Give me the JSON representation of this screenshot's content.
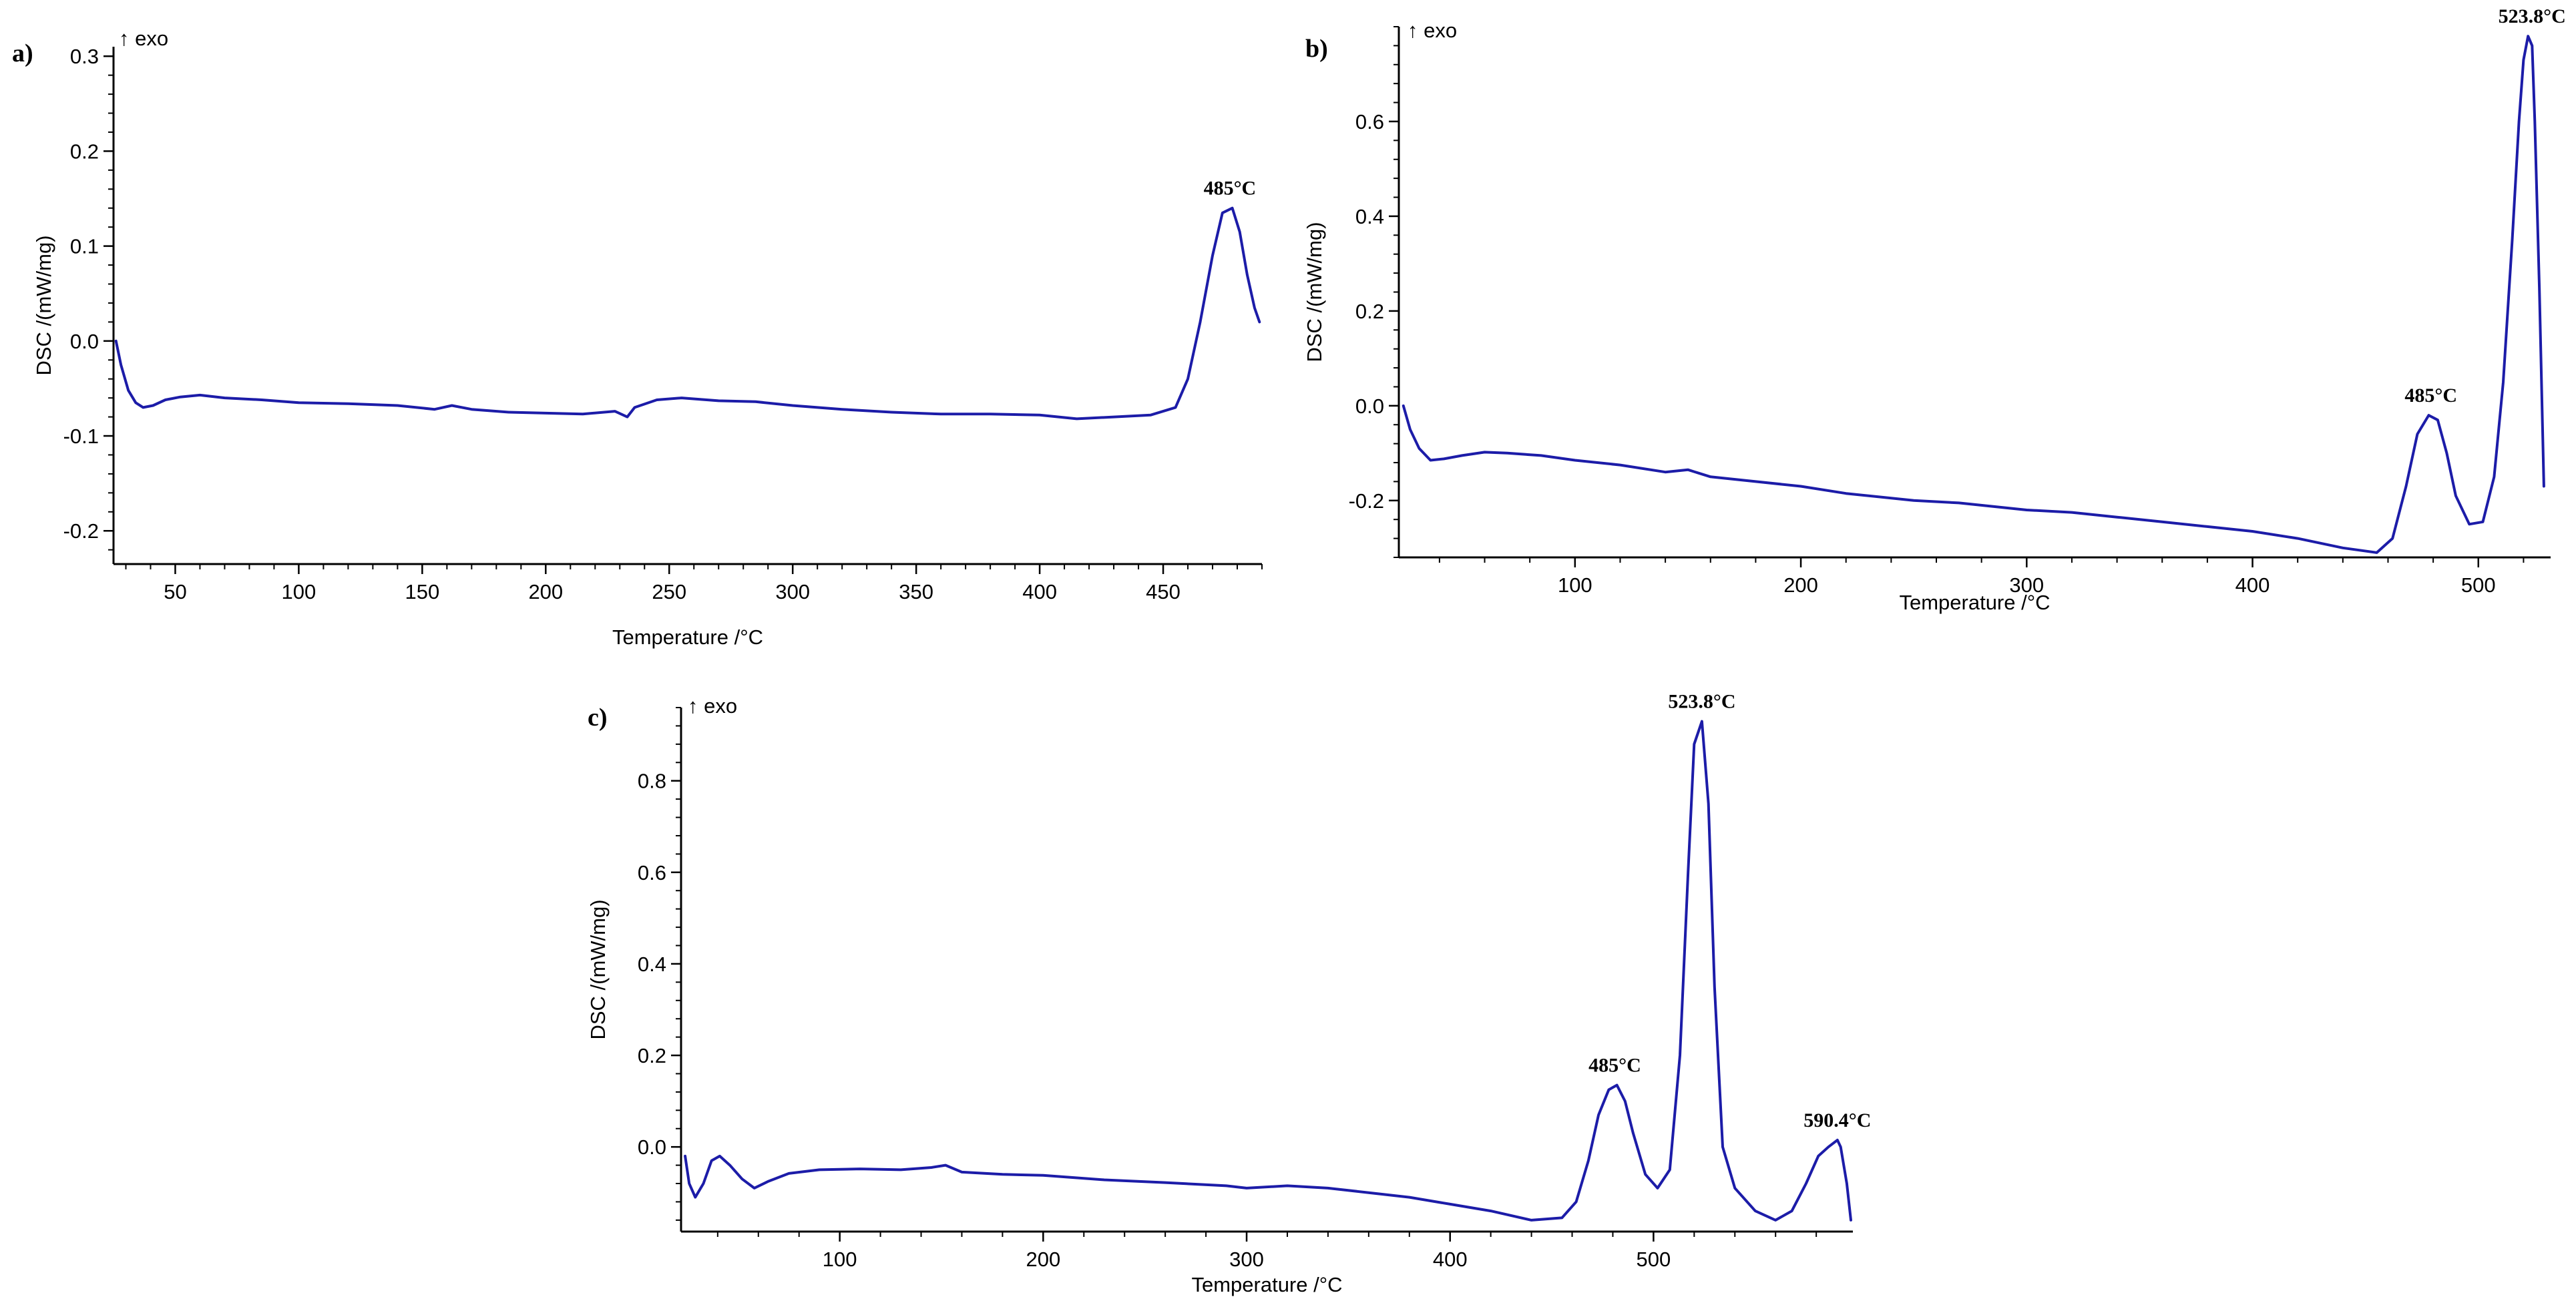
{
  "chart_data": [
    {
      "panel": "a)",
      "type": "line",
      "title": "",
      "exo_label": "↑ exo",
      "xlabel": "Temperature /°C",
      "ylabel": "DSC /(mW/mg)",
      "xlim": [
        25,
        490
      ],
      "ylim": [
        -0.235,
        0.31
      ],
      "xticks": [
        50,
        100,
        150,
        200,
        250,
        300,
        350,
        400,
        450
      ],
      "yticks": [
        -0.2,
        -0.1,
        0.0,
        0.1,
        0.2,
        0.3
      ],
      "ytick_labels": [
        "-0.2",
        "-0.1",
        "0.0",
        "0.1",
        "0.2",
        "0.3"
      ],
      "series": [
        {
          "name": "DSC",
          "color": "#1c1ca8",
          "x": [
            26,
            28,
            31,
            34,
            37,
            41,
            46,
            52,
            60,
            70,
            85,
            100,
            120,
            140,
            155,
            162,
            170,
            185,
            200,
            215,
            228,
            233,
            236,
            245,
            255,
            270,
            285,
            300,
            320,
            340,
            360,
            380,
            400,
            415,
            430,
            445,
            455,
            460,
            465,
            470,
            474,
            478,
            481,
            484,
            487,
            489
          ],
          "y": [
            0.0,
            -0.025,
            -0.052,
            -0.065,
            -0.07,
            -0.068,
            -0.062,
            -0.059,
            -0.057,
            -0.06,
            -0.062,
            -0.065,
            -0.066,
            -0.068,
            -0.072,
            -0.068,
            -0.072,
            -0.075,
            -0.076,
            -0.077,
            -0.074,
            -0.08,
            -0.07,
            -0.062,
            -0.06,
            -0.063,
            -0.064,
            -0.068,
            -0.072,
            -0.075,
            -0.077,
            -0.077,
            -0.078,
            -0.082,
            -0.08,
            -0.078,
            -0.07,
            -0.04,
            0.02,
            0.09,
            0.135,
            0.14,
            0.115,
            0.07,
            0.035,
            0.02
          ]
        }
      ],
      "annotations": [
        {
          "text": "485°C",
          "x": 477,
          "y": 0.14
        }
      ]
    },
    {
      "panel": "b)",
      "type": "line",
      "title": "",
      "exo_label": "↑ exo",
      "xlabel": "Temperature /°C",
      "ylabel": "DSC /(mW/mg)",
      "xlim": [
        22,
        532
      ],
      "ylim": [
        -0.32,
        0.8
      ],
      "xticks": [
        100,
        200,
        300,
        400,
        500
      ],
      "yticks": [
        -0.2,
        0.0,
        0.2,
        0.4,
        0.6
      ],
      "ytick_labels": [
        "-0.2",
        "0.0",
        "0.2",
        "0.4",
        "0.6"
      ],
      "series": [
        {
          "name": "DSC",
          "color": "#1c1ca8",
          "x": [
            24,
            27,
            31,
            36,
            42,
            50,
            60,
            70,
            85,
            100,
            120,
            140,
            150,
            160,
            180,
            200,
            220,
            250,
            270,
            300,
            320,
            340,
            360,
            380,
            400,
            420,
            440,
            455,
            462,
            468,
            473,
            478,
            482,
            486,
            490,
            496,
            502,
            507,
            511,
            515,
            518,
            520,
            522,
            523.8,
            525,
            527,
            529
          ],
          "y": [
            0.0,
            -0.05,
            -0.09,
            -0.115,
            -0.112,
            -0.105,
            -0.098,
            -0.1,
            -0.105,
            -0.115,
            -0.125,
            -0.14,
            -0.135,
            -0.15,
            -0.16,
            -0.17,
            -0.185,
            -0.2,
            -0.205,
            -0.22,
            -0.225,
            -0.235,
            -0.245,
            -0.255,
            -0.265,
            -0.28,
            -0.3,
            -0.31,
            -0.28,
            -0.17,
            -0.06,
            -0.02,
            -0.03,
            -0.1,
            -0.19,
            -0.25,
            -0.245,
            -0.15,
            0.05,
            0.35,
            0.6,
            0.73,
            0.78,
            0.76,
            0.6,
            0.25,
            -0.17
          ]
        }
      ],
      "annotations": [
        {
          "text": "485°C",
          "x": 479,
          "y": -0.02
        },
        {
          "text": "523.8°C",
          "x": 523.8,
          "y": 0.78
        }
      ]
    },
    {
      "panel": "c)",
      "type": "line",
      "title": "",
      "exo_label": "↑ exo",
      "xlabel": "Temperature /°C",
      "ylabel": "DSC /(mW/mg)",
      "xlim": [
        22,
        598
      ],
      "ylim": [
        -0.185,
        0.96
      ],
      "xticks": [
        100,
        200,
        300,
        400,
        500
      ],
      "yticks": [
        0.0,
        0.2,
        0.4,
        0.6,
        0.8
      ],
      "ytick_labels": [
        "0.0",
        "0.2",
        "0.4",
        "0.6",
        "0.8"
      ],
      "series": [
        {
          "name": "DSC",
          "color": "#1c1ca8",
          "x": [
            24,
            26,
            29,
            33,
            37,
            41,
            46,
            52,
            58,
            65,
            75,
            90,
            110,
            130,
            145,
            152,
            160,
            180,
            200,
            230,
            260,
            290,
            300,
            320,
            340,
            360,
            380,
            400,
            420,
            440,
            455,
            462,
            468,
            473,
            478,
            482,
            486,
            490,
            496,
            502,
            508,
            513,
            517,
            520,
            523.8,
            527,
            530,
            534,
            540,
            550,
            560,
            568,
            575,
            581,
            586,
            590.4,
            592,
            595,
            597
          ],
          "y": [
            -0.02,
            -0.08,
            -0.11,
            -0.08,
            -0.03,
            -0.02,
            -0.04,
            -0.07,
            -0.09,
            -0.075,
            -0.058,
            -0.05,
            -0.048,
            -0.05,
            -0.045,
            -0.04,
            -0.055,
            -0.06,
            -0.062,
            -0.072,
            -0.078,
            -0.085,
            -0.09,
            -0.085,
            -0.09,
            -0.1,
            -0.11,
            -0.125,
            -0.14,
            -0.16,
            -0.155,
            -0.12,
            -0.03,
            0.07,
            0.125,
            0.135,
            0.1,
            0.03,
            -0.06,
            -0.09,
            -0.05,
            0.2,
            0.6,
            0.88,
            0.93,
            0.75,
            0.35,
            0.0,
            -0.09,
            -0.14,
            -0.16,
            -0.14,
            -0.08,
            -0.02,
            0.0,
            0.015,
            0.0,
            -0.08,
            -0.16
          ]
        }
      ],
      "annotations": [
        {
          "text": "485°C",
          "x": 481,
          "y": 0.135
        },
        {
          "text": "523.8°C",
          "x": 523.8,
          "y": 0.93
        },
        {
          "text": "590.4°C",
          "x": 590.4,
          "y": 0.015
        }
      ]
    }
  ]
}
